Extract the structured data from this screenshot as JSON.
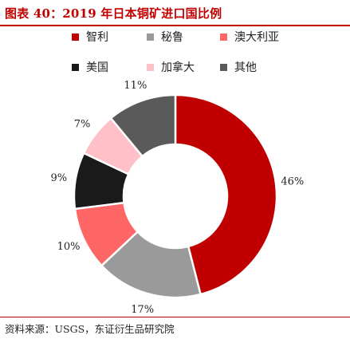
{
  "title": "图表 40：2019 年日本铜矿进口国比例",
  "source": "资料来源：USGS，东证衍生品研究院",
  "legend": [
    {
      "label": "智利",
      "color": "#c00000"
    },
    {
      "label": "秘鲁",
      "color": "#9a9a9a"
    },
    {
      "label": "澳大利亚",
      "color": "#ff6666"
    },
    {
      "label": "美国",
      "color": "#1a1a1a"
    },
    {
      "label": "加拿大",
      "color": "#ffc0c8"
    },
    {
      "label": "其他",
      "color": "#5a5a5a"
    }
  ],
  "chart_data": {
    "type": "pie",
    "title": "图表 40：2019 年日本铜矿进口国比例",
    "donut": true,
    "labels": [
      "智利",
      "秘鲁",
      "澳大利亚",
      "美国",
      "加拿大",
      "其他"
    ],
    "values": [
      46,
      17,
      10,
      9,
      7,
      11
    ],
    "data_labels": [
      "46%",
      "17%",
      "10%",
      "9%",
      "7%",
      "11%"
    ],
    "colors": [
      "#c00000",
      "#9a9a9a",
      "#ff6666",
      "#1a1a1a",
      "#ffc0c8",
      "#5a5a5a"
    ],
    "legend_position": "top"
  }
}
